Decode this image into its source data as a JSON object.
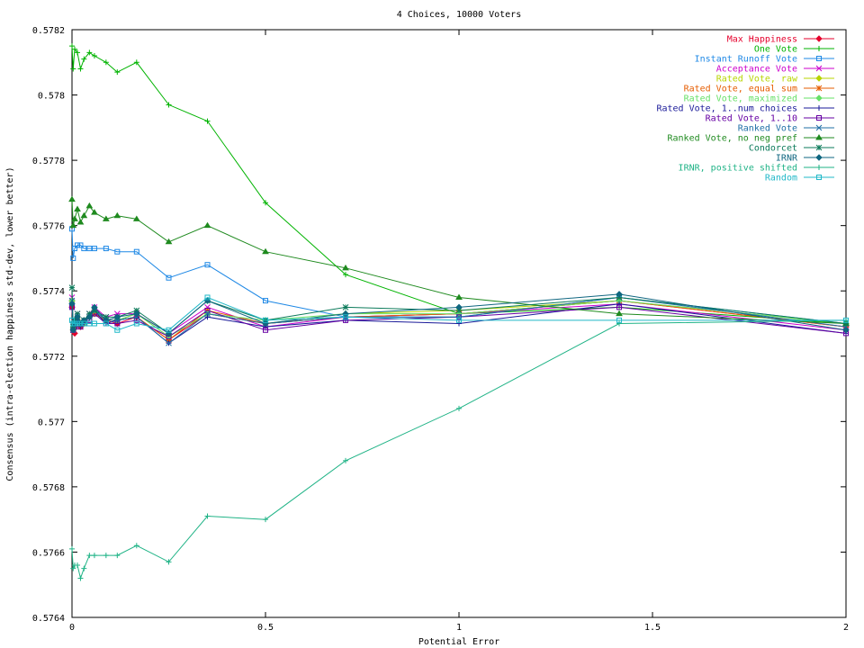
{
  "chart_data": {
    "type": "line",
    "title": "4 Choices, 10000 Voters",
    "xlabel": "Potential Error",
    "ylabel": "Consensus (intra-election happiness std-dev, lower better)",
    "xlim": [
      0,
      2
    ],
    "ylim": [
      0.5764,
      0.5782
    ],
    "xticks": [
      0,
      0.5,
      1,
      1.5,
      2
    ],
    "xtick_labels": [
      "0",
      "0.5",
      "1",
      "1.5",
      "2"
    ],
    "yticks": [
      0.5764,
      0.5766,
      0.5768,
      0.577,
      0.5772,
      0.5774,
      0.5776,
      0.5778,
      0.578,
      0.5782
    ],
    "ytick_labels": [
      "0.5764",
      "0.5766",
      "0.5768",
      "0.577",
      "0.5772",
      "0.5774",
      "0.5776",
      "0.5778",
      "0.578",
      "0.5782"
    ],
    "grid": false,
    "legend_position": "top-right",
    "x": [
      0,
      0.003,
      0.007,
      0.014,
      0.022,
      0.031,
      0.045,
      0.058,
      0.088,
      0.117,
      0.167,
      0.25,
      0.35,
      0.5,
      0.707,
      1.0,
      1.414,
      2.0
    ],
    "series": [
      {
        "name": "Max Happiness",
        "color": "#e6002c",
        "marker": "diamond",
        "values": [
          0.57735,
          0.57728,
          0.57727,
          0.57731,
          0.57729,
          0.5773,
          0.57732,
          0.57733,
          0.57731,
          0.5773,
          0.57732,
          0.57725,
          0.57733,
          0.5773,
          0.57732,
          0.57733,
          0.57737,
          0.57729
        ]
      },
      {
        "name": "One Vote",
        "color": "#00b300",
        "marker": "plus",
        "values": [
          0.57815,
          0.57808,
          0.57814,
          0.57813,
          0.57808,
          0.57811,
          0.57813,
          0.57812,
          0.5781,
          0.57807,
          0.5781,
          0.57797,
          0.57792,
          0.57767,
          0.57745,
          0.57733,
          0.57735,
          0.5773
        ]
      },
      {
        "name": "Instant Runoff Vote",
        "color": "#1e88e5",
        "marker": "square",
        "values": [
          0.57759,
          0.5775,
          0.57753,
          0.57754,
          0.57754,
          0.57753,
          0.57753,
          0.57753,
          0.57753,
          0.57752,
          0.57752,
          0.57744,
          0.57748,
          0.57737,
          0.57732,
          0.57732,
          0.57738,
          0.5773
        ]
      },
      {
        "name": "Acceptance Vote",
        "color": "#cc00cc",
        "marker": "cross",
        "values": [
          0.57738,
          0.57729,
          0.5773,
          0.57733,
          0.5773,
          0.57731,
          0.57733,
          0.57735,
          0.57732,
          0.57733,
          0.57733,
          0.57727,
          0.57735,
          0.57729,
          0.57732,
          0.57733,
          0.57736,
          0.57728
        ]
      },
      {
        "name": "Rated Vote, raw",
        "color": "#b8d400",
        "marker": "diamond",
        "values": [
          0.57737,
          0.57728,
          0.57729,
          0.57732,
          0.5773,
          0.57731,
          0.57732,
          0.57733,
          0.57731,
          0.57731,
          0.57733,
          0.57726,
          0.57733,
          0.5773,
          0.57733,
          0.57734,
          0.57737,
          0.5773
        ]
      },
      {
        "name": "Rated Vote, equal sum",
        "color": "#e65c00",
        "marker": "star",
        "values": [
          0.57736,
          0.57728,
          0.57729,
          0.57731,
          0.57729,
          0.5773,
          0.57732,
          0.57733,
          0.57731,
          0.57731,
          0.57732,
          0.57725,
          0.57734,
          0.5773,
          0.57732,
          0.57733,
          0.57737,
          0.57729
        ]
      },
      {
        "name": "Rated Vote, maximized",
        "color": "#66e066",
        "marker": "diamond",
        "values": [
          0.57737,
          0.57729,
          0.5773,
          0.57732,
          0.5773,
          0.5773,
          0.57732,
          0.57734,
          0.57731,
          0.57731,
          0.57733,
          0.57726,
          0.57733,
          0.57731,
          0.57733,
          0.57733,
          0.57737,
          0.5773
        ]
      },
      {
        "name": "Rated Vote, 1..num choices",
        "color": "#1a1a99",
        "marker": "plus",
        "values": [
          0.57736,
          0.57728,
          0.57729,
          0.57731,
          0.57729,
          0.5773,
          0.57732,
          0.57734,
          0.5773,
          0.57731,
          0.57732,
          0.57724,
          0.57732,
          0.57729,
          0.57731,
          0.5773,
          0.57736,
          0.57727
        ]
      },
      {
        "name": "Rated Vote, 1..10",
        "color": "#6600a3",
        "marker": "square",
        "values": [
          0.57735,
          0.57728,
          0.57729,
          0.5773,
          0.57729,
          0.5773,
          0.57731,
          0.57733,
          0.5773,
          0.5773,
          0.57731,
          0.57726,
          0.57734,
          0.57728,
          0.57731,
          0.57732,
          0.57735,
          0.57727
        ]
      },
      {
        "name": "Ranked Vote",
        "color": "#1f6fa6",
        "marker": "cross",
        "values": [
          0.57737,
          0.57728,
          0.5773,
          0.57732,
          0.5773,
          0.57731,
          0.57732,
          0.57734,
          0.57731,
          0.57731,
          0.57732,
          0.57724,
          0.57733,
          0.5773,
          0.57732,
          0.57732,
          0.57738,
          0.57729
        ]
      },
      {
        "name": "Ranked Vote, no neg pref",
        "color": "#1f8a1f",
        "marker": "triangle",
        "values": [
          0.57768,
          0.5776,
          0.57762,
          0.57765,
          0.57761,
          0.57763,
          0.57766,
          0.57764,
          0.57762,
          0.57763,
          0.57762,
          0.57755,
          0.5776,
          0.57752,
          0.57747,
          0.57738,
          0.57733,
          0.5773
        ]
      },
      {
        "name": "Condorcet",
        "color": "#0b7a5a",
        "marker": "star",
        "values": [
          0.57741,
          0.57729,
          0.57731,
          0.57733,
          0.5773,
          0.57731,
          0.57733,
          0.57734,
          0.57732,
          0.57732,
          0.57734,
          0.57727,
          0.57737,
          0.57731,
          0.57735,
          0.57734,
          0.57738,
          0.5773
        ]
      },
      {
        "name": "IRNR",
        "color": "#0f6680",
        "marker": "diamond",
        "values": [
          0.57736,
          0.57728,
          0.5773,
          0.57732,
          0.5773,
          0.57731,
          0.57732,
          0.57735,
          0.57731,
          0.57732,
          0.57733,
          0.57727,
          0.57737,
          0.5773,
          0.57733,
          0.57735,
          0.57739,
          0.57728
        ]
      },
      {
        "name": "IRNR, positive shifted",
        "color": "#1fb386",
        "marker": "plus",
        "values": [
          0.57661,
          0.57655,
          0.57656,
          0.57656,
          0.57652,
          0.57655,
          0.57659,
          0.57659,
          0.57659,
          0.57659,
          0.57662,
          0.57657,
          0.57671,
          0.5767,
          0.57688,
          0.57704,
          0.5773,
          0.57731
        ]
      },
      {
        "name": "Random",
        "color": "#20b8c8",
        "marker": "square",
        "values": [
          0.57731,
          0.5773,
          0.5773,
          0.5773,
          0.5773,
          0.5773,
          0.5773,
          0.5773,
          0.5773,
          0.57728,
          0.5773,
          0.57728,
          0.57738,
          0.57731,
          0.57732,
          0.57731,
          0.57731,
          0.57731
        ]
      }
    ]
  }
}
